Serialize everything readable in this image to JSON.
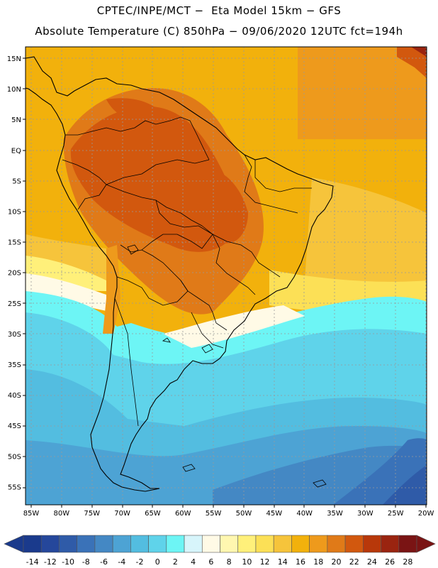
{
  "header": {
    "line1": "CPTEC/INPE/MCT −  Eta Model 15km − GFS",
    "line2": "Absolute Temperature (C) 850hPa − 09/06/2020 12UTC fct=194h"
  },
  "axes": {
    "lat_labels": [
      "15N",
      "10N",
      "5N",
      "EQ",
      "5S",
      "10S",
      "15S",
      "20S",
      "25S",
      "30S",
      "35S",
      "40S",
      "45S",
      "50S",
      "55S"
    ],
    "lon_labels": [
      "85W",
      "80W",
      "75W",
      "70W",
      "65W",
      "60W",
      "55W",
      "50W",
      "45W",
      "40W",
      "35W",
      "30W",
      "25W",
      "20W"
    ]
  },
  "colorbar": {
    "labels": [
      "-14",
      "-12",
      "-10",
      "-8",
      "-6",
      "-4",
      "-2",
      "0",
      "2",
      "4",
      "6",
      "8",
      "10",
      "12",
      "14",
      "16",
      "18",
      "20",
      "22",
      "24",
      "26",
      "28"
    ],
    "colors": [
      "#1a3a8c",
      "#25479b",
      "#2f5ba8",
      "#3a72b8",
      "#4488c4",
      "#4da3d4",
      "#53bde0",
      "#5fd3ea",
      "#6df5f5",
      "#d7f5fb",
      "#fffae6",
      "#fff7b0",
      "#fff07a",
      "#fce056",
      "#f6c43b",
      "#f2b10c",
      "#ee9a1c",
      "#e07a18",
      "#d2580e",
      "#b8380a",
      "#9a2410",
      "#7a1414"
    ]
  },
  "legend_title": "Absolute Temperature (C)"
}
